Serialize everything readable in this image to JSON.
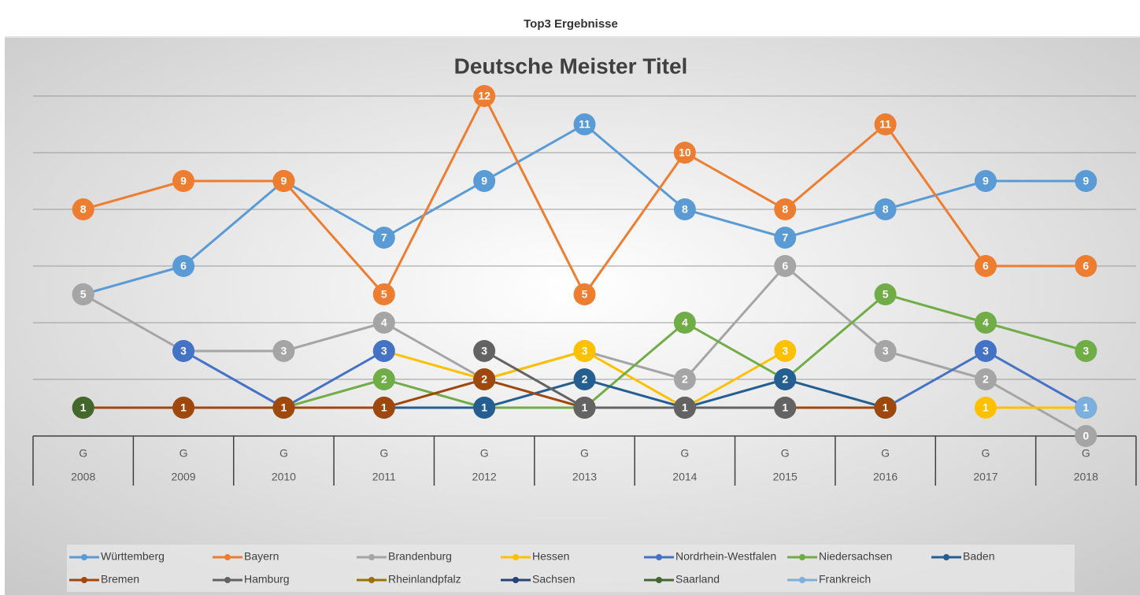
{
  "header": {
    "title": "Top3 Ergebnisse"
  },
  "chart_data": {
    "type": "line",
    "title": "Deutsche Meister Titel",
    "categories": [
      "2008",
      "2009",
      "2010",
      "2011",
      "2012",
      "2013",
      "2014",
      "2015",
      "2016",
      "2017",
      "2018"
    ],
    "subcategories": [
      "G",
      "G",
      "G",
      "G",
      "G",
      "G",
      "G",
      "G",
      "G",
      "G",
      "G"
    ],
    "ylim": [
      0,
      13
    ],
    "yticks": [
      0,
      2,
      4,
      6,
      8,
      10,
      12
    ],
    "grid": true,
    "legend": "bottom",
    "data_labels": true,
    "series": [
      {
        "name": "Württemberg",
        "color": "#5b9bd5",
        "values": [
          5,
          6,
          9,
          7,
          9,
          11,
          8,
          7,
          8,
          9,
          9
        ]
      },
      {
        "name": "Bayern",
        "color": "#ed7d31",
        "values": [
          8,
          9,
          9,
          5,
          12,
          5,
          10,
          8,
          11,
          6,
          6
        ]
      },
      {
        "name": "Brandenburg",
        "color": "#a5a5a5",
        "values": [
          5,
          3,
          3,
          4,
          2,
          3,
          2,
          6,
          3,
          2,
          0
        ]
      },
      {
        "name": "Hessen",
        "color": "#ffc000",
        "values": [
          null,
          null,
          null,
          3,
          2,
          3,
          1,
          3,
          null,
          1,
          1
        ]
      },
      {
        "name": "Nordrhein-Westfalen",
        "color": "#4472c4",
        "values": [
          null,
          3,
          1,
          3,
          null,
          null,
          null,
          null,
          1,
          3,
          1
        ]
      },
      {
        "name": "Niedersachsen",
        "color": "#70ad47",
        "values": [
          null,
          null,
          1,
          2,
          1,
          1,
          4,
          2,
          5,
          4,
          3
        ]
      },
      {
        "name": "Baden",
        "color": "#255e91",
        "values": [
          null,
          null,
          null,
          1,
          1,
          2,
          1,
          2,
          1,
          null,
          null
        ]
      },
      {
        "name": "Bremen",
        "color": "#9e480e",
        "values": [
          1,
          1,
          1,
          1,
          2,
          1,
          1,
          1,
          1,
          null,
          null
        ]
      },
      {
        "name": "Hamburg",
        "color": "#636363",
        "values": [
          null,
          null,
          null,
          null,
          3,
          1,
          1,
          1,
          null,
          null,
          null
        ]
      },
      {
        "name": "Rheinlandpfalz",
        "color": "#997300",
        "values": [
          null,
          null,
          null,
          null,
          null,
          null,
          null,
          null,
          null,
          null,
          null
        ]
      },
      {
        "name": "Sachsen",
        "color": "#264478",
        "values": [
          null,
          null,
          null,
          null,
          null,
          null,
          null,
          null,
          null,
          null,
          null
        ]
      },
      {
        "name": "Saarland",
        "color": "#43682b",
        "values": [
          1,
          null,
          null,
          null,
          null,
          null,
          null,
          null,
          null,
          null,
          null
        ]
      },
      {
        "name": "Frankreich",
        "color": "#7cafdd",
        "values": [
          null,
          null,
          null,
          null,
          null,
          null,
          null,
          null,
          null,
          null,
          1
        ]
      }
    ]
  }
}
